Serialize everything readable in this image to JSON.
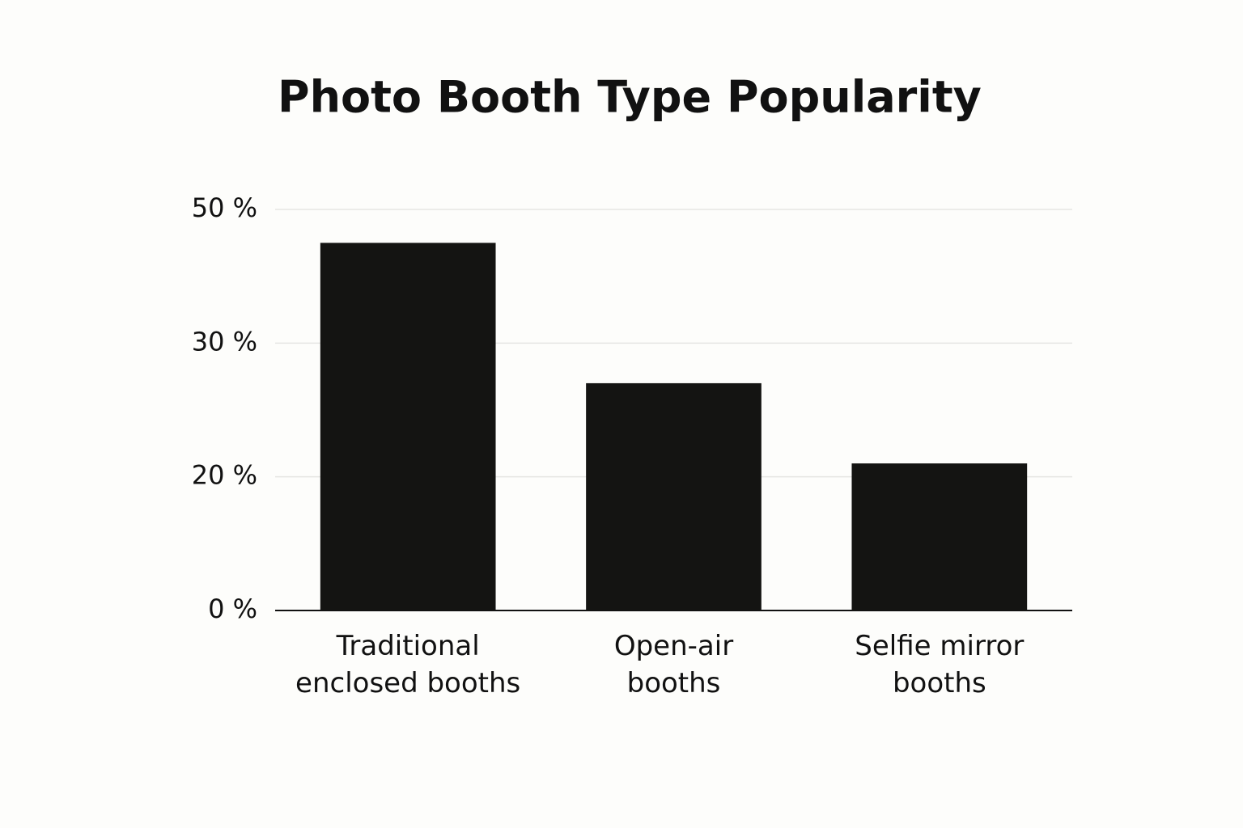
{
  "chart_data": {
    "type": "bar",
    "title": "Photo Booth Type Popularity",
    "categories": [
      [
        "Traditional",
        "enclosed booths"
      ],
      [
        "Open-air",
        "booths"
      ],
      [
        "Selfie mirror",
        "booths"
      ]
    ],
    "values": [
      45,
      27,
      21
    ],
    "color": "#141412",
    "ylim": [
      0,
      50
    ],
    "yticks": [
      {
        "value": 0,
        "label": "0 %"
      },
      {
        "value": 20,
        "label": "20 %"
      },
      {
        "value": 30,
        "label": "30 %"
      },
      {
        "value": 50,
        "label": "50 %"
      }
    ],
    "grid": true
  }
}
